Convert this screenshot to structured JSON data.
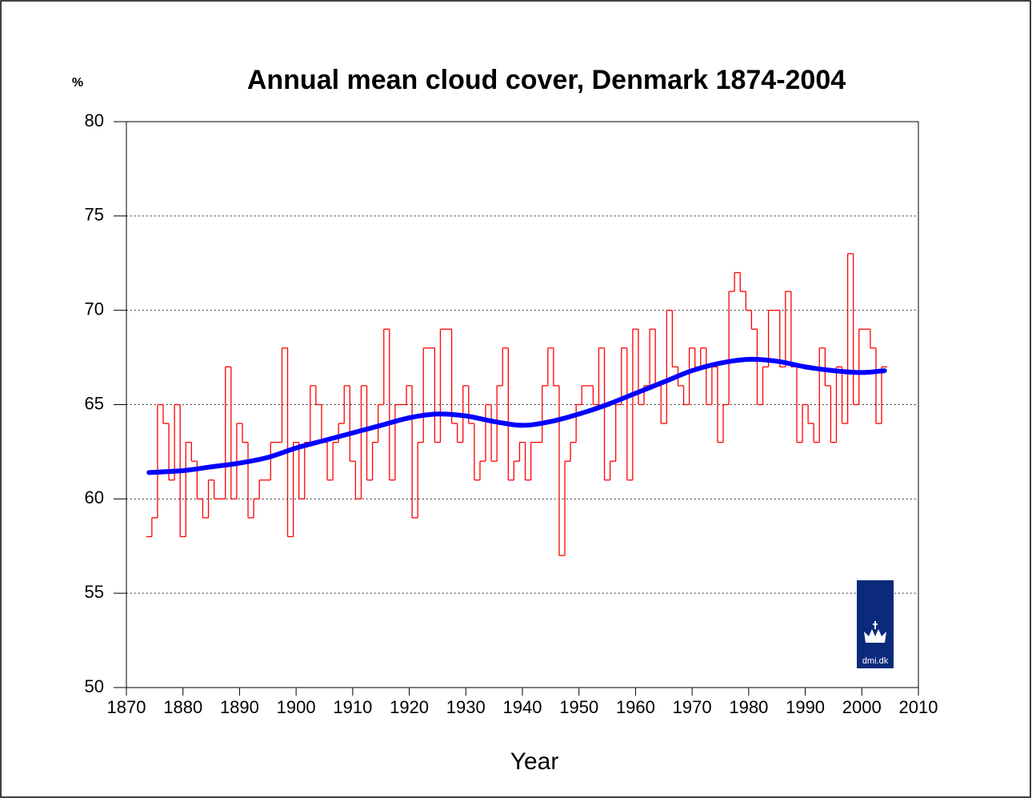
{
  "chart_data": {
    "type": "line",
    "title": "Annual mean cloud cover, Denmark 1874-2004",
    "y_label": "%",
    "x_label": "Year",
    "logo_text": "dmi.dk",
    "xlim": [
      1870,
      2010
    ],
    "xticks": [
      1870,
      1880,
      1890,
      1900,
      1910,
      1920,
      1930,
      1940,
      1950,
      1960,
      1970,
      1980,
      1990,
      2000,
      2010
    ],
    "ylim": [
      50,
      80
    ],
    "yticks": [
      50,
      55,
      60,
      65,
      70,
      75,
      80
    ],
    "grid": true,
    "x": [
      1874,
      1875,
      1876,
      1877,
      1878,
      1879,
      1880,
      1881,
      1882,
      1883,
      1884,
      1885,
      1886,
      1887,
      1888,
      1889,
      1890,
      1891,
      1892,
      1893,
      1894,
      1895,
      1896,
      1897,
      1898,
      1899,
      1900,
      1901,
      1902,
      1903,
      1904,
      1905,
      1906,
      1907,
      1908,
      1909,
      1910,
      1911,
      1912,
      1913,
      1914,
      1915,
      1916,
      1917,
      1918,
      1919,
      1920,
      1921,
      1922,
      1923,
      1924,
      1925,
      1926,
      1927,
      1928,
      1929,
      1930,
      1931,
      1932,
      1933,
      1934,
      1935,
      1936,
      1937,
      1938,
      1939,
      1940,
      1941,
      1942,
      1943,
      1944,
      1945,
      1946,
      1947,
      1948,
      1949,
      1950,
      1951,
      1952,
      1953,
      1954,
      1955,
      1956,
      1957,
      1958,
      1959,
      1960,
      1961,
      1962,
      1963,
      1964,
      1965,
      1966,
      1967,
      1968,
      1969,
      1970,
      1971,
      1972,
      1973,
      1974,
      1975,
      1976,
      1977,
      1978,
      1979,
      1980,
      1981,
      1982,
      1983,
      1984,
      1985,
      1986,
      1987,
      1988,
      1989,
      1990,
      1991,
      1992,
      1993,
      1994,
      1995,
      1996,
      1997,
      1998,
      1999,
      2000,
      2001,
      2002,
      2003,
      2004
    ],
    "series": [
      {
        "color": "#ff0000",
        "step": true,
        "values": [
          58,
          59,
          65,
          64,
          61,
          65,
          58,
          63,
          62,
          60,
          59,
          61,
          60,
          60,
          67,
          60,
          64,
          63,
          59,
          60,
          61,
          61,
          63,
          63,
          68,
          58,
          63,
          60,
          63,
          66,
          65,
          63,
          61,
          63,
          64,
          66,
          62,
          60,
          66,
          61,
          63,
          65,
          69,
          61,
          65,
          65,
          66,
          59,
          63,
          68,
          68,
          63,
          69,
          69,
          64,
          63,
          66,
          64,
          61,
          62,
          65,
          62,
          66,
          68,
          61,
          62,
          63,
          61,
          63,
          63,
          66,
          68,
          66,
          57,
          62,
          63,
          65,
          66,
          66,
          65,
          68,
          61,
          62,
          65,
          68,
          61,
          69,
          65,
          66,
          69,
          66,
          64,
          70,
          67,
          66,
          65,
          68,
          67,
          68,
          65,
          67,
          63,
          65,
          71,
          72,
          71,
          70,
          69,
          65,
          67,
          70,
          70,
          67,
          71,
          67,
          63,
          65,
          64,
          63,
          68,
          66,
          63,
          67,
          64,
          73,
          65,
          69,
          69,
          68,
          64,
          67
        ]
      },
      {
        "color": "#0000ff",
        "step": false,
        "x": [
          1874,
          1880,
          1885,
          1890,
          1895,
          1900,
          1905,
          1910,
          1915,
          1920,
          1925,
          1930,
          1935,
          1940,
          1945,
          1950,
          1955,
          1960,
          1965,
          1970,
          1975,
          1980,
          1985,
          1990,
          1995,
          2000,
          2004
        ],
        "values": [
          61.4,
          61.5,
          61.7,
          61.9,
          62.2,
          62.7,
          63.1,
          63.5,
          63.9,
          64.3,
          64.5,
          64.4,
          64.1,
          63.9,
          64.1,
          64.5,
          65.0,
          65.6,
          66.2,
          66.8,
          67.2,
          67.4,
          67.3,
          67.0,
          66.8,
          66.7,
          66.8
        ]
      }
    ]
  }
}
